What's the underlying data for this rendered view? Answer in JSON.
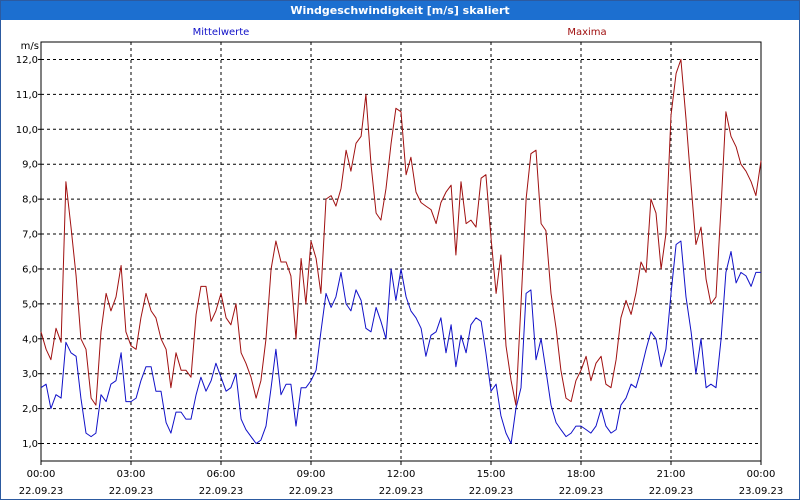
{
  "window": {
    "title": "Windgeschwindigkeit [m/s] skaliert"
  },
  "chart_data": {
    "type": "line",
    "title": "Windgeschwindigkeit [m/s] skaliert",
    "ylabel": "m/s",
    "xlabel": "",
    "ylim": [
      0.5,
      12.5
    ],
    "y_ticks": [
      "1,0",
      "2,0",
      "3,0",
      "4,0",
      "5,0",
      "6,0",
      "7,0",
      "8,0",
      "9,0",
      "10,0",
      "11,0",
      "12,0"
    ],
    "y_tick_values": [
      1,
      2,
      3,
      4,
      5,
      6,
      7,
      8,
      9,
      10,
      11,
      12
    ],
    "xlim": [
      0,
      24
    ],
    "x_ticks": [
      {
        "time": "00:00",
        "date": "22.09.23"
      },
      {
        "time": "03:00",
        "date": "22.09.23"
      },
      {
        "time": "06:00",
        "date": "22.09.23"
      },
      {
        "time": "09:00",
        "date": "22.09.23"
      },
      {
        "time": "12:00",
        "date": "22.09.23"
      },
      {
        "time": "15:00",
        "date": "22.09.23"
      },
      {
        "time": "18:00",
        "date": "22.09.23"
      },
      {
        "time": "21:00",
        "date": "22.09.23"
      },
      {
        "time": "00:00",
        "date": "23.09.23"
      }
    ],
    "grid": true,
    "legend": "top",
    "series": [
      {
        "name": "Mittelwerte",
        "color": "#1010c8",
        "x": [
          0,
          0.17,
          0.33,
          0.5,
          0.67,
          0.83,
          1.0,
          1.17,
          1.33,
          1.5,
          1.67,
          1.83,
          2.0,
          2.17,
          2.33,
          2.5,
          2.67,
          2.83,
          3.0,
          3.17,
          3.33,
          3.5,
          3.67,
          3.83,
          4.0,
          4.17,
          4.33,
          4.5,
          4.67,
          4.83,
          5.0,
          5.17,
          5.33,
          5.5,
          5.67,
          5.83,
          6.0,
          6.17,
          6.33,
          6.5,
          6.67,
          6.83,
          7.0,
          7.17,
          7.33,
          7.5,
          7.67,
          7.83,
          8.0,
          8.17,
          8.33,
          8.5,
          8.67,
          8.83,
          9.0,
          9.17,
          9.33,
          9.5,
          9.67,
          9.83,
          10.0,
          10.17,
          10.33,
          10.5,
          10.67,
          10.83,
          11.0,
          11.17,
          11.33,
          11.5,
          11.67,
          11.83,
          12.0,
          12.17,
          12.33,
          12.5,
          12.67,
          12.83,
          13.0,
          13.17,
          13.33,
          13.5,
          13.67,
          13.83,
          14.0,
          14.17,
          14.33,
          14.5,
          14.67,
          14.83,
          15.0,
          15.17,
          15.33,
          15.5,
          15.67,
          15.83,
          16.0,
          16.17,
          16.33,
          16.5,
          16.67,
          16.83,
          17.0,
          17.17,
          17.33,
          17.5,
          17.67,
          17.83,
          18.0,
          18.17,
          18.33,
          18.5,
          18.67,
          18.83,
          19.0,
          19.17,
          19.33,
          19.5,
          19.67,
          19.83,
          20.0,
          20.17,
          20.33,
          20.5,
          20.67,
          20.83,
          21.0,
          21.17,
          21.33,
          21.5,
          21.67,
          21.83,
          22.0,
          22.17,
          22.33,
          22.5,
          22.67,
          22.83,
          23.0,
          23.17,
          23.33,
          23.5,
          23.67,
          23.83,
          24.0
        ],
        "values": [
          2.6,
          2.7,
          2.0,
          2.4,
          2.3,
          3.9,
          3.6,
          3.5,
          2.3,
          1.3,
          1.2,
          1.3,
          2.4,
          2.2,
          2.7,
          2.8,
          3.6,
          2.2,
          2.2,
          2.3,
          2.8,
          3.2,
          3.2,
          2.5,
          2.5,
          1.6,
          1.3,
          1.9,
          1.9,
          1.7,
          1.7,
          2.4,
          2.9,
          2.5,
          2.8,
          3.3,
          2.9,
          2.5,
          2.6,
          3.0,
          1.7,
          1.4,
          1.2,
          1.0,
          1.1,
          1.5,
          2.6,
          3.7,
          2.4,
          2.7,
          2.7,
          1.5,
          2.6,
          2.6,
          2.8,
          3.1,
          4.2,
          5.3,
          4.9,
          5.2,
          5.9,
          5.0,
          4.8,
          5.4,
          5.1,
          4.3,
          4.2,
          4.9,
          4.5,
          4.0,
          6.0,
          5.1,
          6.0,
          5.2,
          4.8,
          4.6,
          4.3,
          3.5,
          4.1,
          4.2,
          4.6,
          3.6,
          4.4,
          3.2,
          4.1,
          3.6,
          4.4,
          4.6,
          4.5,
          3.6,
          2.5,
          2.7,
          1.8,
          1.3,
          1.0,
          2.0,
          2.6,
          5.3,
          5.4,
          3.4,
          4.0,
          3.1,
          2.1,
          1.6,
          1.4,
          1.2,
          1.3,
          1.5,
          1.5,
          1.4,
          1.3,
          1.5,
          2.0,
          1.5,
          1.3,
          1.4,
          2.1,
          2.3,
          2.7,
          2.6,
          3.1,
          3.7,
          4.2,
          4.0,
          3.2,
          3.7,
          5.3,
          6.7,
          6.8,
          5.2,
          4.2,
          3.0,
          4.0,
          2.6,
          2.7,
          2.6,
          4.0,
          5.9,
          6.5,
          5.6,
          5.9,
          5.8,
          5.5,
          5.9,
          5.9
        ]
      },
      {
        "name": "Maxima",
        "color": "#a01010",
        "x": [
          0,
          0.17,
          0.33,
          0.5,
          0.67,
          0.83,
          1.0,
          1.17,
          1.33,
          1.5,
          1.67,
          1.83,
          2.0,
          2.17,
          2.33,
          2.5,
          2.67,
          2.83,
          3.0,
          3.17,
          3.33,
          3.5,
          3.67,
          3.83,
          4.0,
          4.17,
          4.33,
          4.5,
          4.67,
          4.83,
          5.0,
          5.17,
          5.33,
          5.5,
          5.67,
          5.83,
          6.0,
          6.17,
          6.33,
          6.5,
          6.67,
          6.83,
          7.0,
          7.17,
          7.33,
          7.5,
          7.67,
          7.83,
          8.0,
          8.17,
          8.33,
          8.5,
          8.67,
          8.83,
          9.0,
          9.17,
          9.33,
          9.5,
          9.67,
          9.83,
          10.0,
          10.17,
          10.33,
          10.5,
          10.67,
          10.83,
          11.0,
          11.17,
          11.33,
          11.5,
          11.67,
          11.83,
          12.0,
          12.17,
          12.33,
          12.5,
          12.67,
          12.83,
          13.0,
          13.17,
          13.33,
          13.5,
          13.67,
          13.83,
          14.0,
          14.17,
          14.33,
          14.5,
          14.67,
          14.83,
          15.0,
          15.17,
          15.33,
          15.5,
          15.67,
          15.83,
          16.0,
          16.17,
          16.33,
          16.5,
          16.67,
          16.83,
          17.0,
          17.17,
          17.33,
          17.5,
          17.67,
          17.83,
          18.0,
          18.17,
          18.33,
          18.5,
          18.67,
          18.83,
          19.0,
          19.17,
          19.33,
          19.5,
          19.67,
          19.83,
          20.0,
          20.17,
          20.33,
          20.5,
          20.67,
          20.83,
          21.0,
          21.17,
          21.33,
          21.5,
          21.67,
          21.83,
          22.0,
          22.17,
          22.33,
          22.5,
          22.67,
          22.83,
          23.0,
          23.17,
          23.33,
          23.5,
          23.67,
          23.83,
          24.0
        ],
        "values": [
          4.2,
          3.7,
          3.4,
          4.3,
          3.9,
          8.5,
          7.2,
          5.8,
          4.0,
          3.7,
          2.3,
          2.1,
          4.2,
          5.3,
          4.8,
          5.2,
          6.1,
          4.2,
          3.8,
          3.7,
          4.6,
          5.3,
          4.8,
          4.6,
          4.0,
          3.7,
          2.6,
          3.6,
          3.1,
          3.1,
          2.9,
          4.7,
          5.5,
          5.5,
          4.5,
          4.8,
          5.3,
          4.6,
          4.4,
          5.0,
          3.6,
          3.3,
          2.9,
          2.3,
          2.8,
          4.0,
          6.0,
          6.8,
          6.2,
          6.2,
          5.8,
          4.0,
          6.3,
          5.0,
          6.8,
          6.3,
          5.3,
          8.0,
          8.1,
          7.8,
          8.3,
          9.4,
          8.8,
          9.6,
          9.8,
          11.0,
          9.0,
          7.6,
          7.4,
          8.3,
          9.6,
          10.6,
          10.5,
          8.7,
          9.2,
          8.2,
          7.9,
          7.8,
          7.7,
          7.3,
          7.9,
          8.2,
          8.4,
          6.4,
          8.5,
          7.3,
          7.4,
          7.2,
          8.6,
          8.7,
          6.9,
          5.3,
          6.4,
          3.8,
          2.8,
          2.1,
          5.0,
          8.0,
          9.3,
          9.4,
          7.3,
          7.1,
          5.3,
          4.3,
          3.1,
          2.3,
          2.2,
          2.8,
          3.1,
          3.5,
          2.8,
          3.3,
          3.5,
          2.7,
          2.6,
          3.4,
          4.6,
          5.1,
          4.7,
          5.3,
          6.2,
          5.9,
          8.0,
          7.6,
          6.0,
          7.0,
          10.4,
          11.6,
          12.0,
          10.3,
          8.4,
          6.7,
          7.2,
          5.7,
          5.0,
          5.2,
          7.8,
          10.5,
          9.8,
          9.5,
          9.0,
          8.8,
          8.5,
          8.1,
          9.1
        ]
      }
    ]
  }
}
